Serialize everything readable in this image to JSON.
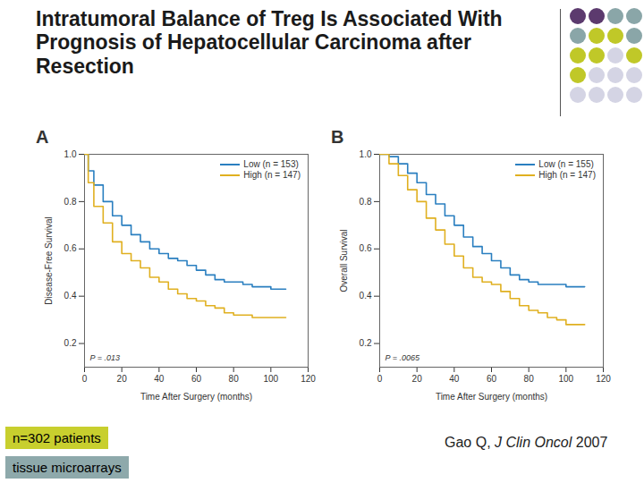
{
  "slide": {
    "title": "Intratumoral Balance of Treg Is Associated With Prognosis of Hepatocellular Carcinoma after Resection",
    "notes": [
      "n=302 patients",
      "tissue microarrays"
    ],
    "citation": {
      "author": "Gao Q,",
      "journal": "J Clin Oncol",
      "year": "2007"
    }
  },
  "chart_data": [
    {
      "type": "line",
      "panel": "A",
      "x_label": "Time After Surgery (months)",
      "y_label": "Disease-Free Survival",
      "annotation": "P = .013",
      "xlim": [
        0,
        120
      ],
      "xticks": [
        0,
        20,
        40,
        60,
        80,
        100,
        120
      ],
      "ylim": [
        0.1,
        1.0
      ],
      "yticks": [
        0.2,
        0.4,
        0.6,
        0.8,
        {
          "value": 1.0,
          "label": "1.0"
        }
      ],
      "legend": "top-right",
      "line_style": "step",
      "series": [
        {
          "name": "Low (n = 153)",
          "color": "#2a7fc0",
          "x": [
            0,
            2,
            5,
            10,
            15,
            20,
            25,
            30,
            35,
            40,
            45,
            50,
            55,
            60,
            65,
            70,
            75,
            80,
            85,
            90,
            95,
            100,
            108
          ],
          "values": [
            1.0,
            0.93,
            0.87,
            0.8,
            0.74,
            0.7,
            0.66,
            0.63,
            0.6,
            0.58,
            0.56,
            0.55,
            0.53,
            0.51,
            0.49,
            0.47,
            0.46,
            0.46,
            0.45,
            0.44,
            0.44,
            0.43,
            0.43
          ]
        },
        {
          "name": "High (n = 147)",
          "color": "#e0b020",
          "x": [
            0,
            2,
            5,
            10,
            15,
            20,
            25,
            30,
            35,
            40,
            45,
            50,
            55,
            60,
            65,
            70,
            75,
            80,
            90,
            100,
            108
          ],
          "values": [
            1.0,
            0.88,
            0.78,
            0.71,
            0.63,
            0.58,
            0.55,
            0.52,
            0.48,
            0.46,
            0.43,
            0.41,
            0.39,
            0.38,
            0.36,
            0.35,
            0.33,
            0.32,
            0.31,
            0.31,
            0.31
          ]
        }
      ]
    },
    {
      "type": "line",
      "panel": "B",
      "x_label": "Time After Surgery (months)",
      "y_label": "Overall Survival",
      "annotation": "P = .0065",
      "xlim": [
        0,
        120
      ],
      "xticks": [
        0,
        20,
        40,
        60,
        80,
        100,
        120
      ],
      "ylim": [
        0.1,
        1.0
      ],
      "yticks": [
        0.2,
        0.4,
        0.6,
        0.8,
        {
          "value": 1.0,
          "label": "1.0"
        }
      ],
      "legend": "top-right",
      "line_style": "step",
      "series": [
        {
          "name": "Low (n = 155)",
          "color": "#2a7fc0",
          "x": [
            0,
            5,
            10,
            15,
            20,
            25,
            30,
            35,
            40,
            45,
            50,
            55,
            60,
            65,
            70,
            75,
            80,
            85,
            90,
            100,
            110
          ],
          "values": [
            1.0,
            0.99,
            0.96,
            0.92,
            0.88,
            0.83,
            0.79,
            0.74,
            0.7,
            0.65,
            0.61,
            0.58,
            0.55,
            0.52,
            0.49,
            0.47,
            0.46,
            0.45,
            0.45,
            0.44,
            0.44
          ]
        },
        {
          "name": "High (n = 147)",
          "color": "#e0b020",
          "x": [
            0,
            5,
            10,
            15,
            20,
            25,
            30,
            35,
            40,
            45,
            50,
            55,
            60,
            65,
            70,
            75,
            80,
            85,
            90,
            95,
            100,
            110
          ],
          "values": [
            1.0,
            0.96,
            0.91,
            0.85,
            0.8,
            0.73,
            0.68,
            0.62,
            0.57,
            0.52,
            0.48,
            0.46,
            0.45,
            0.42,
            0.39,
            0.36,
            0.34,
            0.33,
            0.31,
            0.3,
            0.28,
            0.28
          ]
        }
      ]
    }
  ]
}
